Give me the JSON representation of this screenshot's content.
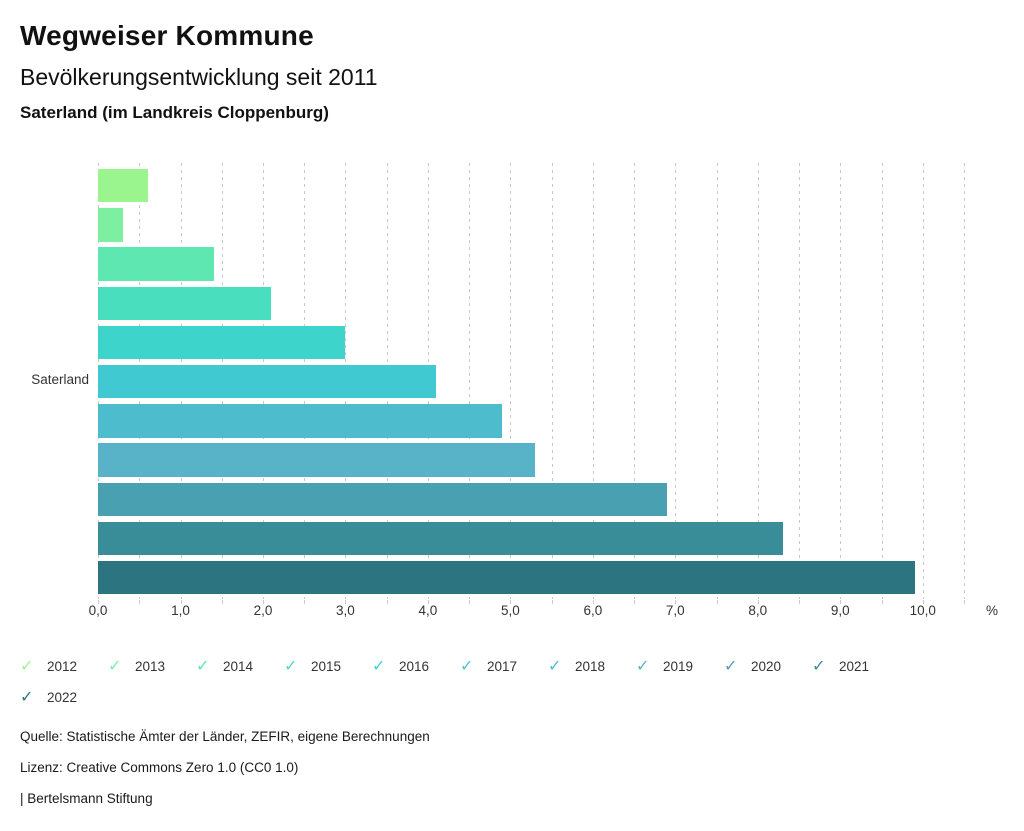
{
  "header": {
    "title": "Wegweiser Kommune",
    "subtitle": "Bevölkerungsentwicklung seit 2011",
    "location": "Saterland (im Landkreis Cloppenburg)"
  },
  "chart_data": {
    "type": "bar",
    "orientation": "horizontal",
    "title": "Bevölkerungsentwicklung seit 2011",
    "category_label": "Saterland",
    "unit": "%",
    "xlim": [
      0,
      10.5
    ],
    "x_tick_step": 1.0,
    "grid_step": 0.5,
    "grid": "dotted-vertical",
    "legend_position": "bottom",
    "x_tick_labels": [
      "0,0",
      "1,0",
      "2,0",
      "3,0",
      "4,0",
      "5,0",
      "6,0",
      "7,0",
      "8,0",
      "9,0",
      "10,0"
    ],
    "series": [
      {
        "name": "2012",
        "value": 0.6,
        "color": "#9AF58E"
      },
      {
        "name": "2013",
        "value": 0.3,
        "color": "#7CEFA1"
      },
      {
        "name": "2014",
        "value": 1.4,
        "color": "#5EE7B0"
      },
      {
        "name": "2015",
        "value": 2.1,
        "color": "#49DEBE"
      },
      {
        "name": "2016",
        "value": 3.0,
        "color": "#3DD5CB"
      },
      {
        "name": "2017",
        "value": 4.1,
        "color": "#41C9D1"
      },
      {
        "name": "2018",
        "value": 4.9,
        "color": "#4DBCCD"
      },
      {
        "name": "2019",
        "value": 5.3,
        "color": "#58B3C8"
      },
      {
        "name": "2020",
        "value": 6.9,
        "color": "#49A0B0"
      },
      {
        "name": "2021",
        "value": 8.3,
        "color": "#398D99"
      },
      {
        "name": "2022",
        "value": 9.9,
        "color": "#2B7480"
      }
    ]
  },
  "legend": {
    "check_glyph": "✓"
  },
  "footer": {
    "source": "Quelle: Statistische Ämter der Länder, ZEFIR, eigene Berechnungen",
    "license": "Lizenz: Creative Commons Zero 1.0 (CC0 1.0)",
    "attribution": "| Bertelsmann Stiftung"
  }
}
